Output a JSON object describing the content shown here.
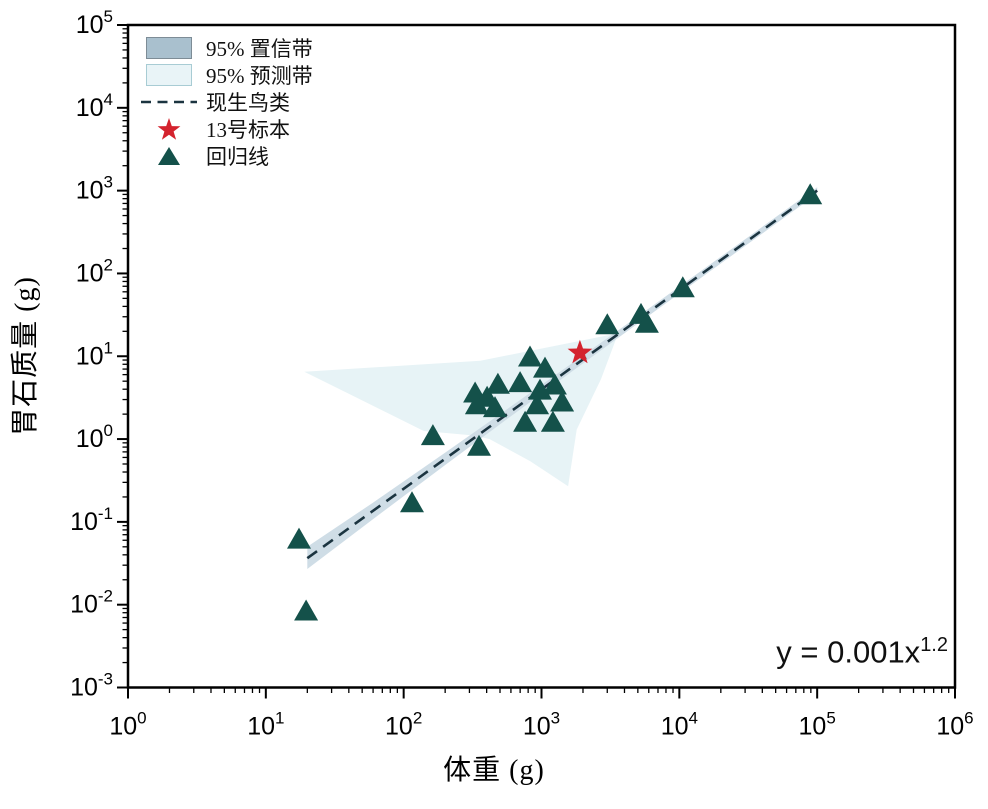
{
  "chart_data": {
    "type": "scatter",
    "title": "",
    "xlabel": "体重 (g)",
    "ylabel": "胃石质量 (g)",
    "xscale": "log",
    "yscale": "log",
    "xlim": [
      1,
      1000000
    ],
    "ylim": [
      0.001,
      100000
    ],
    "x_tick_exponents": [
      0,
      1,
      2,
      3,
      4,
      5,
      6
    ],
    "y_tick_exponents": [
      -3,
      -2,
      -1,
      0,
      1,
      2,
      3,
      4,
      5
    ],
    "grid": false,
    "legend_position": "top-left",
    "equation": {
      "base": "y = 0.001x",
      "exponent": "1.2"
    },
    "legend": {
      "items": [
        {
          "label": "95% 置信带",
          "marker": "confidence-band-swatch",
          "color": "#a9c0ce"
        },
        {
          "label": "95% 预测带",
          "marker": "prediction-band-swatch",
          "color": "#e9f4f7"
        },
        {
          "label": "现生鸟类",
          "marker": "dashed-line",
          "color": "#1b3440"
        },
        {
          "label": "13号标本",
          "marker": "star",
          "color": "#d4232e"
        },
        {
          "label": "回归线",
          "marker": "triangle",
          "color": "#14514a"
        }
      ]
    },
    "series": [
      {
        "name": "95% 预测带",
        "type": "band",
        "color": "#e7f3f6",
        "polygon": [
          [
            19,
            6.5
          ],
          [
            360,
            8.8
          ],
          [
            3600,
            19
          ],
          [
            2700,
            5.3
          ],
          [
            1800,
            1.3
          ],
          [
            1560,
            0.27
          ],
          [
            830,
            0.54
          ],
          [
            420,
            1.0
          ],
          [
            330,
            1.1
          ],
          [
            140,
            1.25
          ]
        ]
      },
      {
        "name": "95% 置信带",
        "type": "band",
        "color": "#cfdde6",
        "upper": [
          [
            20,
            0.05
          ],
          [
            60,
            0.171
          ],
          [
            200,
            0.687
          ],
          [
            600,
            2.47
          ],
          [
            2000,
            10.2
          ],
          [
            6000,
            37.7
          ],
          [
            20000,
            159
          ],
          [
            60000,
            595
          ],
          [
            100000,
            1100
          ]
        ],
        "lower": [
          [
            20,
            0.027
          ],
          [
            60,
            0.108
          ],
          [
            200,
            0.486
          ],
          [
            600,
            1.89
          ],
          [
            2000,
            8.2
          ],
          [
            6000,
            31.0
          ],
          [
            20000,
            132
          ],
          [
            60000,
            495
          ],
          [
            100000,
            912
          ]
        ]
      },
      {
        "name": "现生鸟类",
        "type": "power-line",
        "style": "dashed",
        "color": "#1b3440",
        "coefficient": 0.001,
        "exponent": 1.2,
        "x_range": [
          20,
          100000
        ]
      },
      {
        "name": "回归线",
        "type": "scatter",
        "marker": "triangle",
        "color": "#14514a",
        "points": [
          [
            17.4,
            0.062
          ],
          [
            19.6,
            0.0084
          ],
          [
            115,
            0.17
          ],
          [
            163,
            1.1
          ],
          [
            352,
            0.82
          ],
          [
            330,
            3.6
          ],
          [
            403,
            3.2
          ],
          [
            340,
            2.6
          ],
          [
            460,
            2.4
          ],
          [
            483,
            4.6
          ],
          [
            700,
            4.8
          ],
          [
            975,
            3.9
          ],
          [
            1250,
            4.5
          ],
          [
            929,
            2.6
          ],
          [
            1410,
            2.8
          ],
          [
            760,
            1.6
          ],
          [
            1210,
            1.6
          ],
          [
            825,
            9.8
          ],
          [
            1060,
            7.2
          ],
          [
            3000,
            24
          ],
          [
            5270,
            32
          ],
          [
            5820,
            25
          ],
          [
            10600,
            67
          ],
          [
            89000,
            890
          ]
        ]
      },
      {
        "name": "13号标本",
        "type": "scatter",
        "marker": "star",
        "color": "#d4232e",
        "points": [
          [
            1900,
            11
          ]
        ]
      }
    ]
  }
}
